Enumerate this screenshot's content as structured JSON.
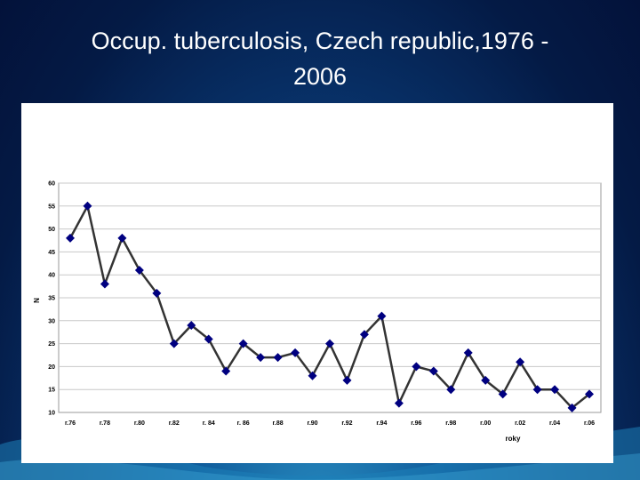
{
  "slide": {
    "title_line1": "Occup. tuberculosis, Czech republic,1976 -",
    "title_line2": "2006"
  },
  "colors": {
    "line": "#333333",
    "marker": "#000080",
    "grid": "#c8c8c8"
  },
  "chart_data": {
    "type": "line",
    "title": "Occup. tuberculosis, Czech republic,1976 - 2006",
    "xlabel": "roky",
    "ylabel": "N",
    "ylim": [
      10,
      60
    ],
    "yticks": [
      10,
      15,
      20,
      25,
      30,
      35,
      40,
      45,
      50,
      55,
      60
    ],
    "grid": true,
    "marker": "diamond",
    "x": [
      1976,
      1977,
      1978,
      1979,
      1980,
      1981,
      1982,
      1983,
      1984,
      1985,
      1986,
      1987,
      1988,
      1989,
      1990,
      1991,
      1992,
      1993,
      1994,
      1995,
      1996,
      1997,
      1998,
      1999,
      2000,
      2001,
      2002,
      2003,
      2004,
      2005,
      2006
    ],
    "values": [
      48,
      55,
      38,
      48,
      41,
      36,
      25,
      29,
      26,
      19,
      25,
      22,
      22,
      23,
      18,
      25,
      17,
      27,
      31,
      12,
      20,
      19,
      15,
      23,
      17,
      14,
      21,
      15,
      15,
      11,
      14
    ],
    "xtick_labels": [
      "r.76",
      "r.78",
      "r.80",
      "r.82",
      "r. 84",
      "r. 86",
      "r.88",
      "r.90",
      "r.92",
      "r.94",
      "r.96",
      "r.98",
      "r.00",
      "r.02",
      "r.04",
      "r.06"
    ],
    "xtick_years": [
      1976,
      1978,
      1980,
      1982,
      1984,
      1986,
      1988,
      1990,
      1992,
      1994,
      1996,
      1998,
      2000,
      2002,
      2004,
      2006
    ]
  }
}
